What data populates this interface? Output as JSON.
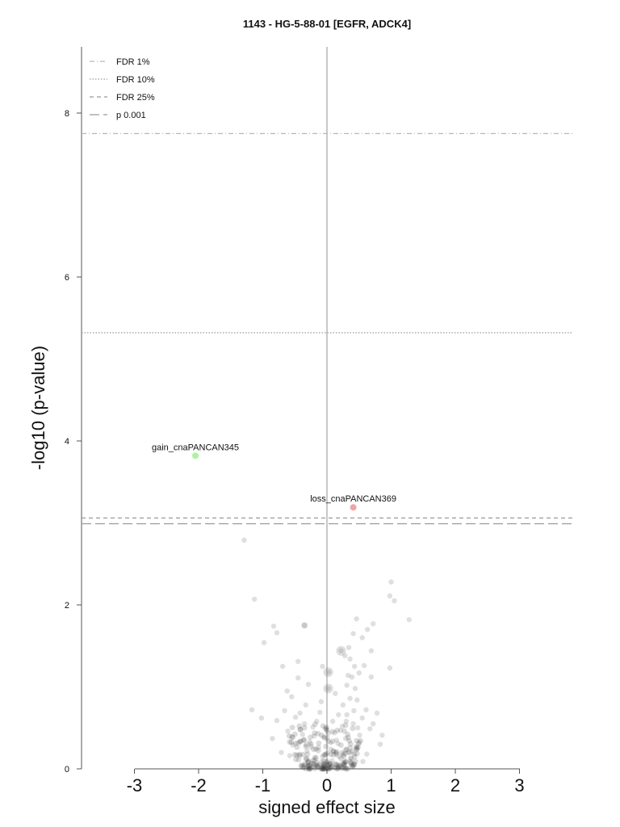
{
  "chart_data": {
    "type": "scatter",
    "title": "1143 - HG-5-88-01 [EGFR, ADCK4]",
    "xlabel": "signed effect size",
    "ylabel": "-log10 (p-value)",
    "xlim": [
      -3.8,
      3.8
    ],
    "ylim": [
      0,
      8.8
    ],
    "xticks": [
      -3,
      -2,
      -1,
      0,
      1,
      2,
      3
    ],
    "yticks": [
      0,
      2,
      4,
      6,
      8
    ],
    "legend_position": "top-left",
    "thresholds": [
      {
        "name": "FDR 1%",
        "value": 7.75,
        "style": "dashdot",
        "color": "#b8b8b8"
      },
      {
        "name": "FDR 10%",
        "value": 5.32,
        "style": "dotted",
        "color": "#9a9a9a"
      },
      {
        "name": "FDR 25%",
        "value": 3.06,
        "style": "dashed",
        "color": "#9a9a9a"
      },
      {
        "name": "p 0.001",
        "value": 2.99,
        "style": "longdash",
        "color": "#9a9a9a"
      }
    ],
    "highlighted": [
      {
        "label": "gain_cnaPANCAN345",
        "x": -2.05,
        "y": 3.82,
        "color": "#aef2a0"
      },
      {
        "label": "loss_cnaPANCAN369",
        "x": 0.41,
        "y": 3.19,
        "color": "#f4a3a3"
      }
    ],
    "points": [
      [
        -1.29,
        2.79
      ],
      [
        1.0,
        2.28
      ],
      [
        -1.13,
        2.07
      ],
      [
        0.98,
        2.11
      ],
      [
        1.05,
        2.05
      ],
      [
        1.28,
        1.82
      ],
      [
        0.46,
        1.83
      ],
      [
        0.72,
        1.77
      ],
      [
        -0.35,
        1.75
      ],
      [
        -0.83,
        1.74
      ],
      [
        -0.78,
        1.66
      ],
      [
        0.63,
        1.7
      ],
      [
        0.41,
        1.65
      ],
      [
        0.55,
        1.6
      ],
      [
        -0.98,
        1.54
      ],
      [
        0.22,
        1.44
      ],
      [
        0.34,
        1.48
      ],
      [
        0.69,
        1.44
      ],
      [
        0.28,
        1.38
      ],
      [
        0.36,
        1.34
      ],
      [
        -0.45,
        1.31
      ],
      [
        -0.07,
        1.25
      ],
      [
        -0.69,
        1.25
      ],
      [
        0.43,
        1.25
      ],
      [
        0.58,
        1.26
      ],
      [
        0.98,
        1.23
      ],
      [
        0.03,
        1.18
      ],
      [
        0.33,
        1.14
      ],
      [
        0.39,
        1.12
      ],
      [
        0.5,
        1.17
      ],
      [
        -0.45,
        1.11
      ],
      [
        0.69,
        1.12
      ],
      [
        -0.29,
        1.03
      ],
      [
        0.02,
        0.98
      ],
      [
        0.31,
        1.02
      ],
      [
        0.44,
        0.98
      ],
      [
        -0.62,
        0.95
      ],
      [
        0.13,
        0.92
      ],
      [
        -0.55,
        0.88
      ],
      [
        0.47,
        0.84
      ],
      [
        -1.17,
        0.72
      ],
      [
        0.25,
        0.78
      ],
      [
        0.61,
        0.72
      ],
      [
        -0.33,
        0.78
      ],
      [
        -0.11,
        0.69
      ],
      [
        0.31,
        0.66
      ],
      [
        -0.49,
        0.63
      ],
      [
        0.55,
        0.62
      ],
      [
        0.78,
        0.68
      ],
      [
        -0.78,
        0.59
      ],
      [
        0.09,
        0.58
      ],
      [
        -1.02,
        0.62
      ],
      [
        0.41,
        0.55
      ],
      [
        -0.22,
        0.51
      ],
      [
        0.67,
        0.49
      ],
      [
        -0.61,
        0.46
      ],
      [
        0.21,
        0.47
      ],
      [
        -0.38,
        0.42
      ],
      [
        0.51,
        0.41
      ],
      [
        -0.05,
        0.39
      ],
      [
        0.29,
        0.37
      ],
      [
        -0.85,
        0.37
      ],
      [
        0.86,
        0.41
      ],
      [
        0.72,
        0.55
      ],
      [
        -0.27,
        0.33
      ],
      [
        0.17,
        0.31
      ],
      [
        -0.53,
        0.29
      ],
      [
        0.45,
        0.27
      ],
      [
        -0.13,
        0.26
      ],
      [
        0.06,
        0.24
      ],
      [
        -0.31,
        0.22
      ],
      [
        0.33,
        0.2
      ],
      [
        -0.71,
        0.2
      ],
      [
        0.62,
        0.18
      ],
      [
        -0.02,
        0.18
      ],
      [
        0.19,
        0.15
      ],
      [
        -0.19,
        0.14
      ],
      [
        0.38,
        0.12
      ],
      [
        -0.44,
        0.11
      ],
      [
        0.08,
        0.1
      ],
      [
        -0.08,
        0.09
      ],
      [
        0.27,
        0.08
      ],
      [
        -0.24,
        0.07
      ],
      [
        0.13,
        0.06
      ],
      [
        -0.12,
        0.05
      ],
      [
        0.02,
        0.04
      ],
      [
        -0.04,
        0.03
      ],
      [
        0.05,
        0.02
      ],
      [
        -0.58,
        0.16
      ],
      [
        0.56,
        0.09
      ],
      [
        0.12,
        0.44
      ],
      [
        -0.16,
        0.58
      ],
      [
        0.36,
        0.86
      ],
      [
        -0.09,
        0.82
      ],
      [
        0.18,
        0.66
      ],
      [
        0.24,
        0.52
      ],
      [
        -0.35,
        0.55
      ],
      [
        0.42,
        0.71
      ],
      [
        -0.66,
        0.71
      ],
      [
        0.83,
        0.3
      ],
      [
        0.06,
        0.32
      ],
      [
        -0.01,
        0.48
      ],
      [
        0.1,
        0.22
      ],
      [
        -0.07,
        0.15
      ],
      [
        0.0,
        0.08
      ],
      [
        0.15,
        0.35
      ],
      [
        -0.2,
        0.4
      ],
      [
        0.48,
        0.5
      ],
      [
        -0.42,
        0.68
      ],
      [
        0.3,
        0.58
      ]
    ],
    "big_points": [
      [
        0.22,
        1.44,
        6
      ],
      [
        0.02,
        1.18,
        6
      ],
      [
        0.02,
        0.98,
        6
      ],
      [
        -0.35,
        1.75,
        4
      ]
    ]
  }
}
